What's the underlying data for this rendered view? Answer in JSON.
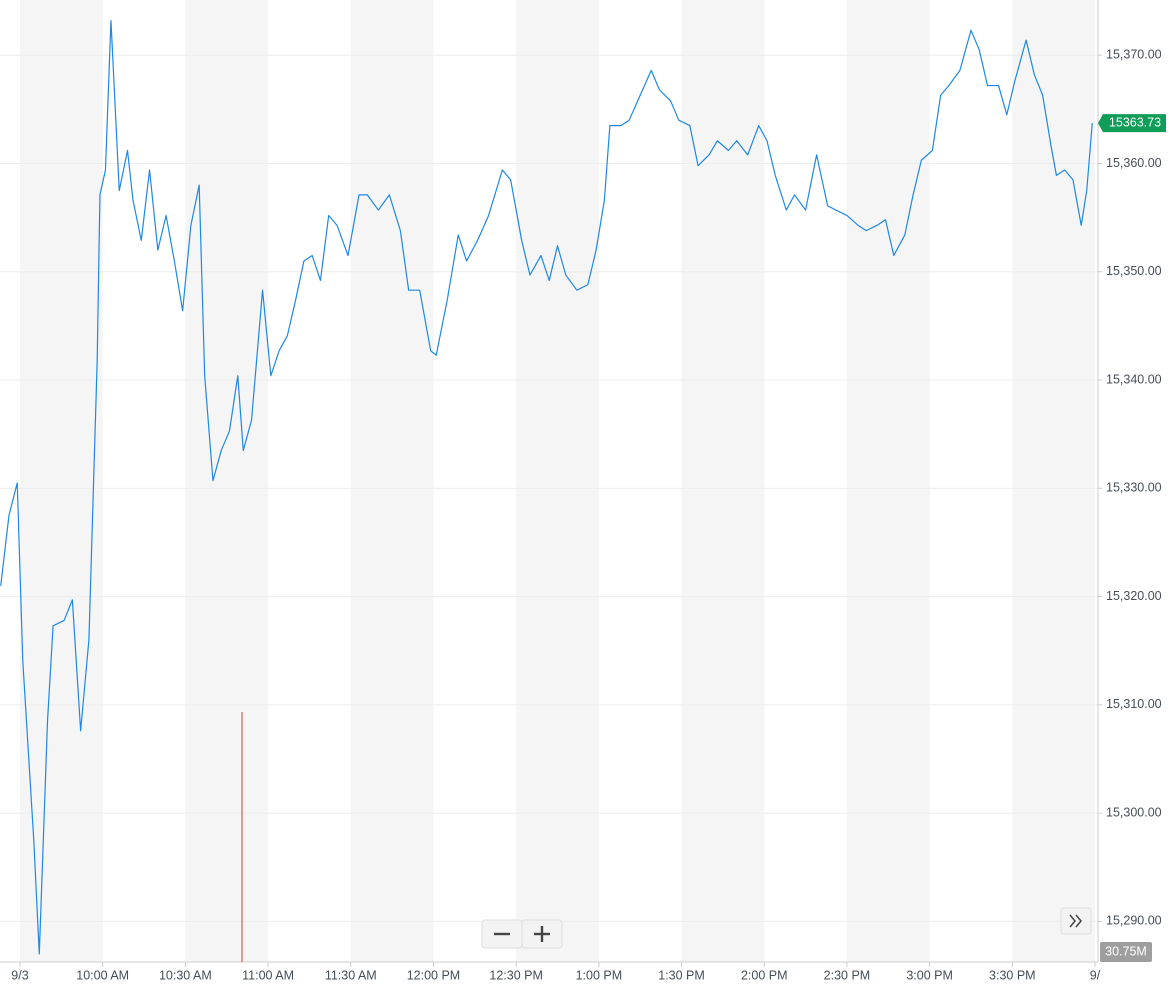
{
  "chart_data": {
    "type": "line",
    "x": [
      "9:23",
      "9:26",
      "9:29",
      "9:31",
      "9:35",
      "9:37",
      "9:40",
      "9:42",
      "9:46",
      "9:49",
      "9:52",
      "9:55",
      "9:58",
      "9:59",
      "10:01",
      "10:03",
      "10:06",
      "10:09",
      "10:11",
      "10:14",
      "10:17",
      "10:20",
      "10:23",
      "10:26",
      "10:29",
      "10:32",
      "10:35",
      "10:37",
      "10:40",
      "10:43",
      "10:46",
      "10:49",
      "10:51",
      "10:54",
      "10:58",
      "11:01",
      "11:04",
      "11:07",
      "11:10",
      "11:13",
      "11:16",
      "11:19",
      "11:22",
      "11:25",
      "11:29",
      "11:33",
      "11:36",
      "11:40",
      "11:44",
      "11:48",
      "11:51",
      "11:55",
      "11:59",
      "12:01",
      "12:05",
      "12:09",
      "12:12",
      "12:16",
      "12:20",
      "12:25",
      "12:28",
      "12:32",
      "12:35",
      "12:39",
      "12:42",
      "12:45",
      "12:48",
      "12:52",
      "12:56",
      "12:59",
      "13:02",
      "13:04",
      "13:08",
      "13:11",
      "13:15",
      "13:19",
      "13:22",
      "13:26",
      "13:29",
      "13:33",
      "13:36",
      "13:40",
      "13:43",
      "13:47",
      "13:50",
      "13:54",
      "13:58",
      "14:01",
      "14:04",
      "14:08",
      "14:11",
      "14:15",
      "14:19",
      "14:23",
      "14:26",
      "14:30",
      "14:34",
      "14:37",
      "14:41",
      "14:44",
      "14:47",
      "14:51",
      "14:54",
      "14:57",
      "15:01",
      "15:04",
      "15:07",
      "15:11",
      "15:15",
      "15:18",
      "15:21",
      "15:25",
      "15:28",
      "15:31",
      "15:35",
      "15:38",
      "15:41",
      "15:44",
      "15:46",
      "15:49",
      "15:52",
      "15:55",
      "15:57",
      "15:59"
    ],
    "series": [
      {
        "color": "#1e88e5",
        "values": [
          15321.0,
          15327.5,
          15330.5,
          15314.1,
          15297.5,
          15287,
          15308.6,
          15317.3,
          15317.8,
          15319.7,
          15307.6,
          15316,
          15341.8,
          15357.1,
          15359.4,
          15373.2,
          15357.5,
          15361.2,
          15356.6,
          15352.9,
          15359.4,
          15352,
          15355.2,
          15351,
          15346.4,
          15354.3,
          15358,
          15340.4,
          15330.7,
          15333.5,
          15335.3,
          15340.4,
          15333.5,
          15336.3,
          15348.3,
          15340.4,
          15342.7,
          15344.1,
          15347.4,
          15351,
          15351.5,
          15349.2,
          15355.2,
          15354.3,
          15351.5,
          15357.1,
          15357.1,
          15355.7,
          15357.1,
          15353.8,
          15348.3,
          15348.3,
          15342.7,
          15342.3,
          15347.4,
          15353.4,
          15351,
          15352.9,
          15355.2,
          15359.4,
          15358.5,
          15352.9,
          15349.7,
          15351.5,
          15349.2,
          15352.4,
          15349.7,
          15348.3,
          15348.8,
          15352,
          15356.6,
          15363.5,
          15363.5,
          15364,
          15366.3,
          15368.6,
          15366.8,
          15365.8,
          15364,
          15363.5,
          15359.8,
          15360.8,
          15362.1,
          15361.2,
          15362.1,
          15360.8,
          15363.5,
          15362.1,
          15358.9,
          15355.7,
          15357.1,
          15355.7,
          15360.8,
          15356.1,
          15355.7,
          15355.2,
          15354.3,
          15353.8,
          15354.3,
          15354.8,
          15351.5,
          15353.4,
          15357.1,
          15360.3,
          15361.2,
          15366.3,
          15367.2,
          15368.6,
          15372.3,
          15370.5,
          15367.2,
          15367.2,
          15364.5,
          15367.7,
          15371.4,
          15368.2,
          15366.3,
          15361.7,
          15358.9,
          15359.4,
          15358.5,
          15354.3,
          15357.5,
          15363.73
        ]
      }
    ],
    "last_price_color": "#0f9d58",
    "xticks": [
      {
        "value": "9:30",
        "label": "9/3"
      },
      {
        "value": "10:00",
        "label": "10:00 AM"
      },
      {
        "value": "10:30",
        "label": "10:30 AM"
      },
      {
        "value": "11:00",
        "label": "11:00 AM"
      },
      {
        "value": "11:30",
        "label": "11:30 AM"
      },
      {
        "value": "12:00",
        "label": "12:00 PM"
      },
      {
        "value": "12:30",
        "label": "12:30 PM"
      },
      {
        "value": "13:00",
        "label": "1:00 PM"
      },
      {
        "value": "13:30",
        "label": "1:30 PM"
      },
      {
        "value": "14:00",
        "label": "2:00 PM"
      },
      {
        "value": "14:30",
        "label": "2:30 PM"
      },
      {
        "value": "15:00",
        "label": "3:00 PM"
      },
      {
        "value": "15:30",
        "label": "3:30 PM"
      },
      {
        "value": "16:00",
        "label": "9/"
      }
    ],
    "ylim": [
      15286.9,
      15375.1
    ],
    "yticks": [
      {
        "value": 15290,
        "label": "15,290.00"
      },
      {
        "value": 15300,
        "label": "15,300.00"
      },
      {
        "value": 15310,
        "label": "15,310.00"
      },
      {
        "value": 15320,
        "label": "15,320.00"
      },
      {
        "value": 15330,
        "label": "15,330.00"
      },
      {
        "value": 15340,
        "label": "15,340.00"
      },
      {
        "value": 15350,
        "label": "15,350.00"
      },
      {
        "value": 15360,
        "label": "15,360.00"
      },
      {
        "value": 15370,
        "label": "15,370.00"
      }
    ],
    "grid": true,
    "shaded_bands": true,
    "volume_label": "30.75M"
  }
}
